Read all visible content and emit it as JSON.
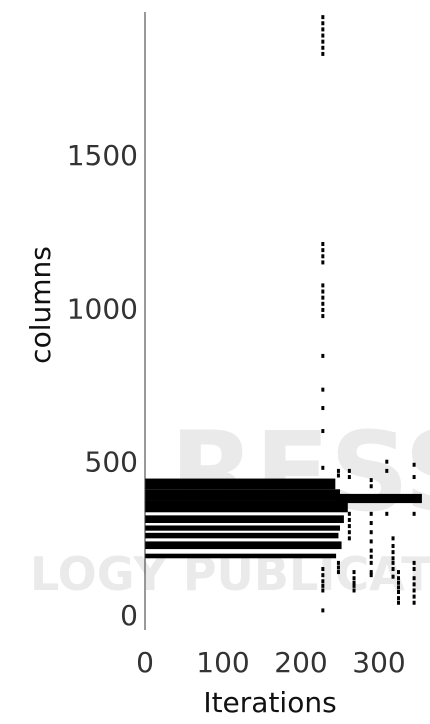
{
  "chart_data": {
    "type": "scatter",
    "title": "",
    "xlabel": "Iterations",
    "ylabel": "columns",
    "xlim": [
      0,
      355
    ],
    "ylim": [
      -10,
      1960
    ],
    "x_ticks": [
      "0",
      "100",
      "200",
      "300"
    ],
    "y_ticks": [
      "0",
      "500",
      "1000",
      "1500"
    ],
    "grid": false,
    "legend": "none",
    "bands": [
      {
        "x_start": 0,
        "x_end": 244,
        "y_low": 410,
        "y_high": 445
      },
      {
        "x_start": 0,
        "x_end": 250,
        "y_low": 375,
        "y_high": 410
      },
      {
        "x_start": 0,
        "x_end": 260,
        "y_low": 335,
        "y_high": 375
      },
      {
        "x_start": 0,
        "x_end": 255,
        "y_low": 300,
        "y_high": 325
      },
      {
        "x_start": 0,
        "x_end": 250,
        "y_low": 275,
        "y_high": 292
      },
      {
        "x_start": 0,
        "x_end": 248,
        "y_low": 250,
        "y_high": 268
      },
      {
        "x_start": 0,
        "x_end": 252,
        "y_low": 215,
        "y_high": 240
      },
      {
        "x_start": 0,
        "x_end": 245,
        "y_low": 185,
        "y_high": 200
      },
      {
        "x_start": 245,
        "x_end": 355,
        "y_low": 365,
        "y_high": 395
      }
    ],
    "point_columns": [
      {
        "x": 228,
        "y": [
          1830,
          1850,
          1870,
          1890,
          1910,
          1930,
          1950
        ]
      },
      {
        "x": 228,
        "y": [
          1150,
          1170,
          1190,
          1210
        ]
      },
      {
        "x": 228,
        "y": [
          975,
          995,
          1015,
          1035,
          1055,
          1075
        ]
      },
      {
        "x": 228,
        "y": [
          845,
          675,
          735,
          600
        ]
      },
      {
        "x": 228,
        "y": [
          480,
          150,
          130,
          110,
          95,
          80,
          15
        ]
      },
      {
        "x": 248,
        "y": [
          470,
          455,
          170,
          155,
          140
        ]
      },
      {
        "x": 262,
        "y": [
          470,
          450,
          330,
          310,
          290,
          270,
          250
        ]
      },
      {
        "x": 268,
        "y": [
          140,
          120,
          105,
          95,
          80
        ]
      },
      {
        "x": 290,
        "y": [
          440,
          420,
          330,
          300,
          270,
          240,
          210,
          190,
          170,
          140,
          130
        ]
      },
      {
        "x": 310,
        "y": [
          500,
          470,
          330
        ]
      },
      {
        "x": 318,
        "y": [
          250,
          225,
          205,
          185,
          170,
          150,
          125
        ]
      },
      {
        "x": 325,
        "y": [
          140,
          120,
          105,
          90,
          75,
          55,
          40
        ]
      },
      {
        "x": 345,
        "y": [
          490,
          450,
          330,
          170,
          150,
          120,
          100,
          80,
          60,
          40
        ]
      }
    ]
  },
  "watermark": {
    "line1": "RESS",
    "line2": "LOGY PUBLICATIONS"
  }
}
